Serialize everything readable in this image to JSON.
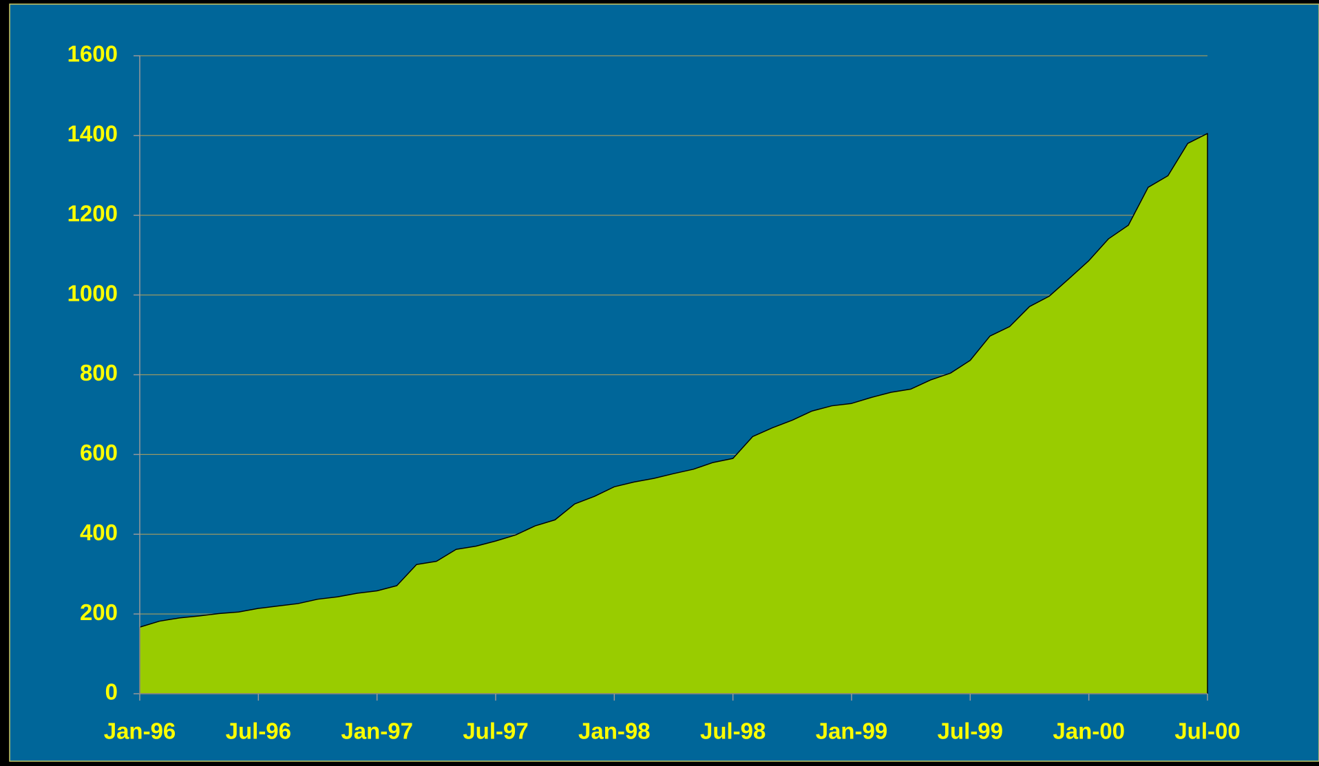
{
  "chart_data": {
    "type": "area",
    "categories": [
      "Jan-96",
      null,
      null,
      null,
      null,
      null,
      "Jul-96",
      null,
      null,
      null,
      null,
      null,
      "Jan-97",
      null,
      null,
      null,
      null,
      null,
      "Jul-97",
      null,
      null,
      null,
      null,
      null,
      "Jan-98",
      null,
      null,
      null,
      null,
      null,
      "Jul-98",
      null,
      null,
      null,
      null,
      null,
      "Jan-99",
      null,
      null,
      null,
      null,
      null,
      "Jul-99",
      null,
      null,
      null,
      null,
      null,
      "Jan-00",
      null,
      null,
      null,
      null,
      null,
      "Jul-00"
    ],
    "series": [
      {
        "color": "#99cc00",
        "values": [
          167,
          182,
          190,
          195,
          201,
          205,
          214,
          220,
          226,
          237,
          243,
          252,
          258,
          271,
          324,
          332,
          362,
          370,
          383,
          398,
          421,
          436,
          476,
          495,
          519,
          531,
          540,
          552,
          563,
          580,
          590,
          645,
          667,
          686,
          709,
          722,
          728,
          743,
          756,
          764,
          787,
          804,
          836,
          897,
          921,
          971,
          997,
          1041,
          1086,
          1141,
          1175,
          1270,
          1299,
          1380,
          1405
        ]
      }
    ],
    "ylim": [
      0,
      1600
    ],
    "yticks": [
      0,
      200,
      400,
      600,
      800,
      1000,
      1200,
      1400,
      1600
    ],
    "grid": true
  }
}
